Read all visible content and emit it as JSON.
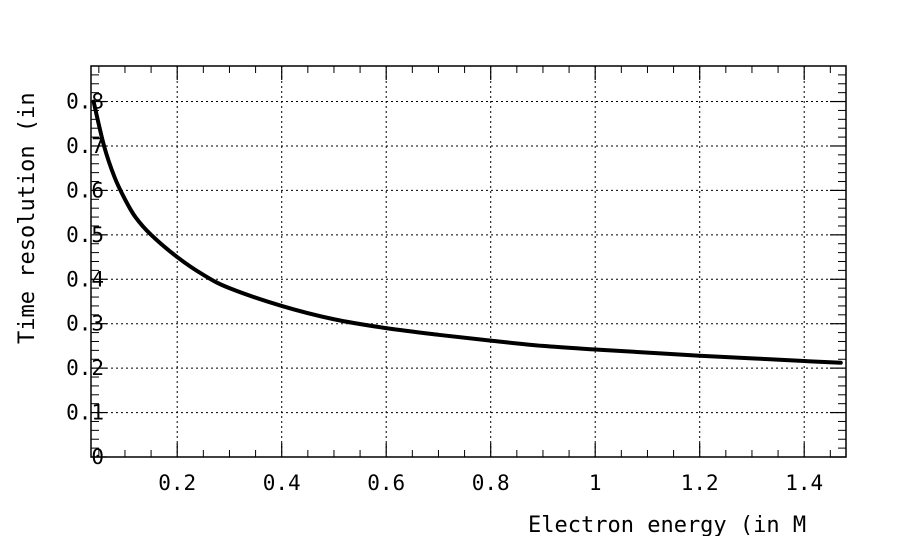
{
  "chart_data": {
    "type": "line",
    "title": "",
    "xlabel": "Electron energy (in M",
    "ylabel": "Time resolution (in",
    "xlim": [
      0.035,
      1.48
    ],
    "ylim": [
      0,
      0.88
    ],
    "xticks": [
      0.2,
      0.4,
      0.6,
      0.8,
      1,
      1.2,
      1.4
    ],
    "xtick_labels": [
      "0.2",
      "0.4",
      "0.6",
      "0.8",
      "1",
      "1.2",
      "1.4"
    ],
    "yticks": [
      0,
      0.1,
      0.2,
      0.3,
      0.4,
      0.5,
      0.6,
      0.7,
      0.8
    ],
    "ytick_labels": [
      "0",
      "0.1",
      "0.2",
      "0.3",
      "0.4",
      "0.5",
      "0.6",
      "0.7",
      "0.8"
    ],
    "grid": true,
    "series": [
      {
        "color": "#000000",
        "x": [
          0.04,
          0.06,
          0.08,
          0.1,
          0.12,
          0.15,
          0.2,
          0.25,
          0.3,
          0.4,
          0.5,
          0.6,
          0.7,
          0.8,
          0.9,
          1.0,
          1.1,
          1.2,
          1.3,
          1.4,
          1.47
        ],
        "y": [
          0.8,
          0.7,
          0.63,
          0.58,
          0.54,
          0.5,
          0.45,
          0.41,
          0.38,
          0.34,
          0.31,
          0.29,
          0.275,
          0.262,
          0.25,
          0.242,
          0.235,
          0.228,
          0.222,
          0.216,
          0.212
        ]
      }
    ]
  }
}
